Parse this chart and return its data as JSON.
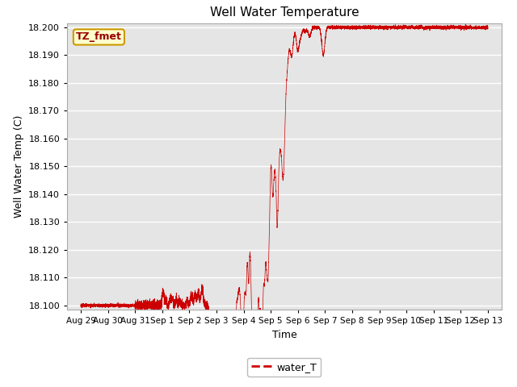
{
  "title": "Well Water Temperature",
  "ylabel": "Well Water Temp (C)",
  "xlabel": "Time",
  "legend_label": "water_T",
  "annotation_text": "TZ_fmet",
  "line_color": "#cc0000",
  "background_color": "#e5e5e5",
  "ylim_low": 18.0985,
  "ylim_high": 18.2015,
  "yticks": [
    18.1,
    18.11,
    18.12,
    18.13,
    18.14,
    18.15,
    18.16,
    18.17,
    18.18,
    18.19,
    18.2
  ],
  "x_tick_labels": [
    "Aug 29",
    "Aug 30",
    "Aug 31",
    "Sep 1",
    "Sep 2",
    "Sep 3",
    "Sep 4",
    "Sep 5",
    "Sep 6",
    "Sep 7",
    "Sep 8",
    "Sep 9",
    "Sep 10",
    "Sep 11",
    "Sep 12",
    "Sep 13"
  ],
  "num_days": 15
}
